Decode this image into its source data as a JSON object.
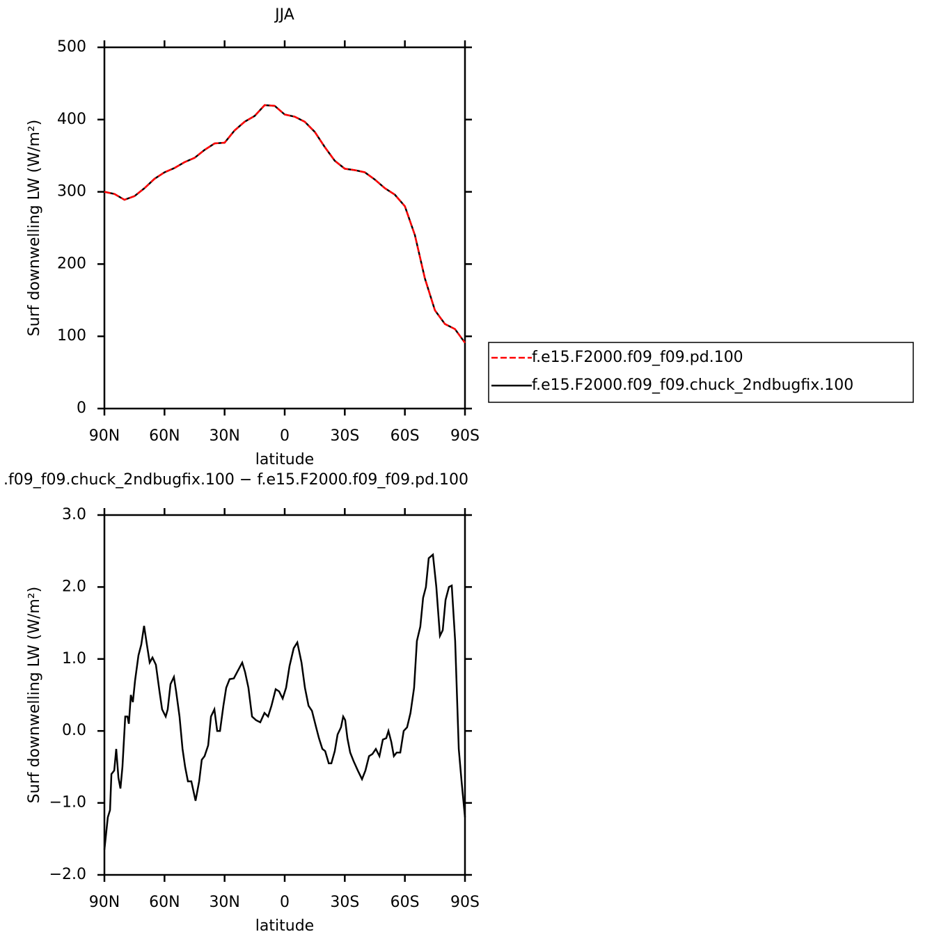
{
  "chart_data": [
    {
      "type": "line",
      "title": "JJA",
      "x_label": "latitude",
      "y_label": "Surf downwelling LW (W/m²)",
      "x": [
        90,
        85,
        80,
        75,
        70,
        65,
        60,
        55,
        50,
        45,
        40,
        35,
        30,
        25,
        20,
        15,
        10,
        5,
        0,
        -5,
        -10,
        -15,
        -20,
        -25,
        -30,
        -35,
        -40,
        -45,
        -50,
        -55,
        -60,
        -65,
        -70,
        -75,
        -80,
        -85,
        -90
      ],
      "series": [
        {
          "name": "f.e15.F2000.f09_f09.pd.100",
          "color": "#ff0000",
          "style": "dashed",
          "values": [
            300,
            297,
            289,
            294,
            305,
            318,
            327,
            333,
            341,
            347,
            358,
            367,
            368,
            385,
            397,
            405,
            420,
            419,
            407,
            404,
            397,
            383,
            362,
            343,
            332,
            330,
            327,
            317,
            305,
            296,
            280,
            240,
            180,
            136,
            117,
            110,
            91
          ]
        },
        {
          "name": "f.e15.F2000.f09_f09.chuck_2ndbugfix.100",
          "color": "#000000",
          "style": "solid",
          "values": [
            300,
            297,
            289,
            294,
            305,
            318,
            327,
            333,
            341,
            347,
            358,
            367,
            368,
            385,
            397,
            405,
            420,
            419,
            407,
            404,
            397,
            383,
            362,
            343,
            332,
            330,
            327,
            317,
            305,
            296,
            280,
            240,
            180,
            136,
            117,
            110,
            91
          ]
        }
      ],
      "xlim": [
        90,
        -90
      ],
      "xticks": [
        {
          "value": 90,
          "label": "90N"
        },
        {
          "value": 60,
          "label": "60N"
        },
        {
          "value": 30,
          "label": "30N"
        },
        0,
        {
          "value": -30,
          "label": "30S"
        },
        {
          "value": -60,
          "label": "60S"
        },
        {
          "value": -90,
          "label": "90S"
        }
      ],
      "ylim": [
        0,
        500
      ],
      "yticks": [
        0,
        100,
        200,
        300,
        400,
        500
      ],
      "legend": "right"
    },
    {
      "type": "line",
      "title": ".f09_f09.chuck_2ndbugfix.100 − f.e15.F2000.f09_f09.pd.100",
      "x_label": "latitude",
      "y_label": "Surf downwelling LW (W/m²)",
      "x": [
        90,
        88.3,
        87.2,
        86.5,
        85.1,
        84.1,
        83,
        82,
        81,
        79.6,
        78.5,
        77.8,
        76.8,
        75.8,
        74.7,
        73,
        71.6,
        70.2,
        68.8,
        67.4,
        66,
        64.3,
        62.5,
        61.2,
        59.4,
        58.4,
        57,
        55.3,
        54.2,
        52.5,
        51,
        49.7,
        48.3,
        46.6,
        44.5,
        42.7,
        41.4,
        40,
        38.2,
        36.8,
        35.1,
        33.7,
        32.3,
        30.6,
        29.2,
        27.5,
        25.4,
        23.7,
        21.2,
        19.8,
        18.1,
        16.3,
        14.3,
        12.2,
        10.1,
        8.3,
        6.6,
        4.5,
        2.8,
        1,
        -0.7,
        -2.4,
        -4.5,
        -6.3,
        -8.4,
        -10.1,
        -11.9,
        -13.6,
        -15.7,
        -17.1,
        -18.8,
        -20.2,
        -22,
        -23.3,
        -25,
        -26.4,
        -28.1,
        -29.2,
        -30.2,
        -31.3,
        -32.7,
        -34.4,
        -36.5,
        -38.6,
        -40.3,
        -42.1,
        -43.8,
        -45.5,
        -47.3,
        -49,
        -50.7,
        -51.8,
        -53.2,
        -54.5,
        -55.9,
        -57.7,
        -59.4,
        -61.1,
        -62.8,
        -64.6,
        -66,
        -67.7,
        -69.1,
        -70.5,
        -71.9,
        -74,
        -75.7,
        -77.5,
        -78.9,
        -80.3,
        -82,
        -83.4,
        -85.1,
        -86.9,
        -88.3,
        -90
      ],
      "values": [
        -1.65,
        -1.2,
        -1.1,
        -0.6,
        -0.55,
        -0.25,
        -0.65,
        -0.8,
        -0.5,
        0.2,
        0.2,
        0.1,
        0.5,
        0.4,
        0.7,
        1.05,
        1.2,
        1.46,
        1.2,
        0.95,
        1.02,
        0.92,
        0.55,
        0.3,
        0.2,
        0.3,
        0.65,
        0.75,
        0.55,
        0.2,
        -0.25,
        -0.5,
        -0.7,
        -0.7,
        -0.97,
        -0.7,
        -0.4,
        -0.35,
        -0.2,
        0.2,
        0.3,
        0,
        0,
        0.35,
        0.6,
        0.72,
        0.73,
        0.82,
        0.95,
        0.82,
        0.6,
        0.2,
        0.15,
        0.12,
        0.25,
        0.2,
        0.35,
        0.58,
        0.55,
        0.45,
        0.6,
        0.9,
        1.15,
        1.23,
        0.95,
        0.6,
        0.35,
        0.28,
        0.05,
        -0.1,
        -0.25,
        -0.28,
        -0.45,
        -0.45,
        -0.28,
        -0.05,
        0.05,
        0.2,
        0.15,
        -0.1,
        -0.3,
        -0.42,
        -0.55,
        -0.67,
        -0.55,
        -0.35,
        -0.32,
        -0.25,
        -0.35,
        -0.12,
        -0.1,
        0,
        -0.15,
        -0.35,
        -0.3,
        -0.3,
        0,
        0.05,
        0.25,
        0.6,
        1.25,
        1.45,
        1.85,
        2.0,
        2.4,
        2.45,
        2.0,
        1.32,
        1.4,
        1.82,
        2.0,
        2.02,
        1.25,
        -0.25,
        -0.7,
        -1.2
      ],
      "color": "#000000",
      "xlim": [
        90,
        -90
      ],
      "xticks": [
        {
          "value": 90,
          "label": "90N"
        },
        {
          "value": 60,
          "label": "60N"
        },
        {
          "value": 30,
          "label": "30N"
        },
        0,
        {
          "value": -30,
          "label": "30S"
        },
        {
          "value": -60,
          "label": "60S"
        },
        {
          "value": -90,
          "label": "90S"
        }
      ],
      "ylim": [
        -2,
        3
      ],
      "yticks": [
        {
          "value": -2,
          "label": "−2.0"
        },
        {
          "value": -1,
          "label": "−1.0"
        },
        {
          "value": 0,
          "label": "0.0"
        },
        {
          "value": 1,
          "label": "1.0"
        },
        {
          "value": 2,
          "label": "2.0"
        },
        {
          "value": 3,
          "label": "3.0"
        }
      ]
    }
  ]
}
